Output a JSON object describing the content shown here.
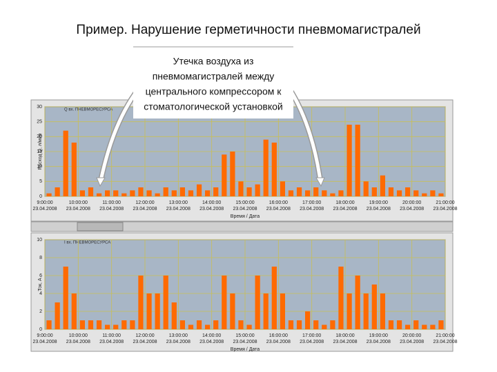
{
  "header": {
    "title": "Пример. Нарушение герметичности пневмомагистралей"
  },
  "callout": {
    "lines": [
      "Утечка воздуха из",
      "пневмомагистралей между",
      "центрального компрессором к",
      "стоматологической установкой"
    ]
  },
  "chart_data": [
    {
      "type": "bar",
      "title": "Q вх. ПНЕВМОРЕСУРСА",
      "ylabel": "Расход Q, л/мин",
      "xlabel": "Время / Дата",
      "color": "#ff6a00",
      "grid": true,
      "xtick_date": "23.04.2008",
      "x": [
        9,
        9.25,
        9.5,
        9.75,
        10,
        10.25,
        10.5,
        10.75,
        11,
        11.25,
        11.5,
        11.75,
        12,
        12.25,
        12.5,
        12.75,
        13,
        13.25,
        13.5,
        13.75,
        14,
        14.25,
        14.5,
        14.75,
        15,
        15.25,
        15.5,
        15.75,
        16,
        16.25,
        16.5,
        16.75,
        17,
        17.25,
        17.5,
        17.75,
        18,
        18.25,
        18.5,
        18.75,
        19,
        19.25,
        19.5,
        19.75,
        20,
        20.25,
        20.5,
        20.75
      ],
      "values": [
        1,
        3,
        22,
        18,
        2,
        3,
        1,
        2,
        2,
        1,
        2,
        3,
        2,
        1,
        3,
        2,
        3,
        2,
        4,
        2,
        3,
        14,
        15,
        5,
        3,
        4,
        19,
        18,
        5,
        2,
        3,
        2,
        3,
        2,
        1,
        2,
        24,
        24,
        5,
        3,
        7,
        3,
        2,
        3,
        2,
        1,
        2,
        1
      ],
      "xlim": [
        9,
        21
      ],
      "xticks": [
        {
          "value": 9,
          "label": "9:00:00"
        },
        {
          "value": 10,
          "label": "10:00:00"
        },
        {
          "value": 11,
          "label": "11:00:00"
        },
        {
          "value": 12,
          "label": "12:00:00"
        },
        {
          "value": 13,
          "label": "13:00:00"
        },
        {
          "value": 14,
          "label": "14:00:00"
        },
        {
          "value": 15,
          "label": "15:00:00"
        },
        {
          "value": 16,
          "label": "16:00:00"
        },
        {
          "value": 17,
          "label": "17:00:00"
        },
        {
          "value": 18,
          "label": "18:00:00"
        },
        {
          "value": 19,
          "label": "19:00:00"
        },
        {
          "value": 20,
          "label": "20:00:00"
        },
        {
          "value": 21,
          "label": "21:00:00"
        }
      ],
      "ylim": [
        0,
        30
      ],
      "yticks": [
        0,
        5,
        10,
        15,
        20,
        25,
        30
      ]
    },
    {
      "type": "bar",
      "title": "I вх. ПНЕВМОРЕСУРСА",
      "ylabel": "Ток, А",
      "xlabel": "Время / Дата",
      "color": "#ff6a00",
      "grid": true,
      "xtick_date": "23.04.2008",
      "x": [
        9,
        9.25,
        9.5,
        9.75,
        10,
        10.25,
        10.5,
        10.75,
        11,
        11.25,
        11.5,
        11.75,
        12,
        12.25,
        12.5,
        12.75,
        13,
        13.25,
        13.5,
        13.75,
        14,
        14.25,
        14.5,
        14.75,
        15,
        15.25,
        15.5,
        15.75,
        16,
        16.25,
        16.5,
        16.75,
        17,
        17.25,
        17.5,
        17.75,
        18,
        18.25,
        18.5,
        18.75,
        19,
        19.25,
        19.5,
        19.75,
        20,
        20.25,
        20.5,
        20.75
      ],
      "values": [
        1,
        3,
        7,
        4,
        1,
        1,
        1,
        0.5,
        0.5,
        1,
        1,
        6,
        4,
        4,
        6,
        3,
        1,
        0.5,
        1,
        0.5,
        1,
        6,
        4,
        1,
        0.5,
        6,
        4,
        7,
        4,
        1,
        1,
        2,
        1,
        0.5,
        1,
        7,
        4,
        6,
        4,
        5,
        4,
        1,
        1,
        0.5,
        1,
        0.5,
        0.5,
        1
      ],
      "xlim": [
        9,
        21
      ],
      "xticks": [
        {
          "value": 9,
          "label": "9:00:00"
        },
        {
          "value": 10,
          "label": "10:00:00"
        },
        {
          "value": 11,
          "label": "11:00:00"
        },
        {
          "value": 12,
          "label": "12:00:00"
        },
        {
          "value": 13,
          "label": "13:00:00"
        },
        {
          "value": 14,
          "label": "14:00:00"
        },
        {
          "value": 15,
          "label": "15:00:00"
        },
        {
          "value": 16,
          "label": "16:00:00"
        },
        {
          "value": 17,
          "label": "17:00:00"
        },
        {
          "value": 18,
          "label": "18:00:00"
        },
        {
          "value": 19,
          "label": "19:00:00"
        },
        {
          "value": 20,
          "label": "20:00:00"
        },
        {
          "value": 21,
          "label": "21:00:00"
        }
      ],
      "ylim": [
        0,
        10
      ],
      "yticks": [
        0,
        2,
        4,
        6,
        8,
        10
      ]
    }
  ]
}
